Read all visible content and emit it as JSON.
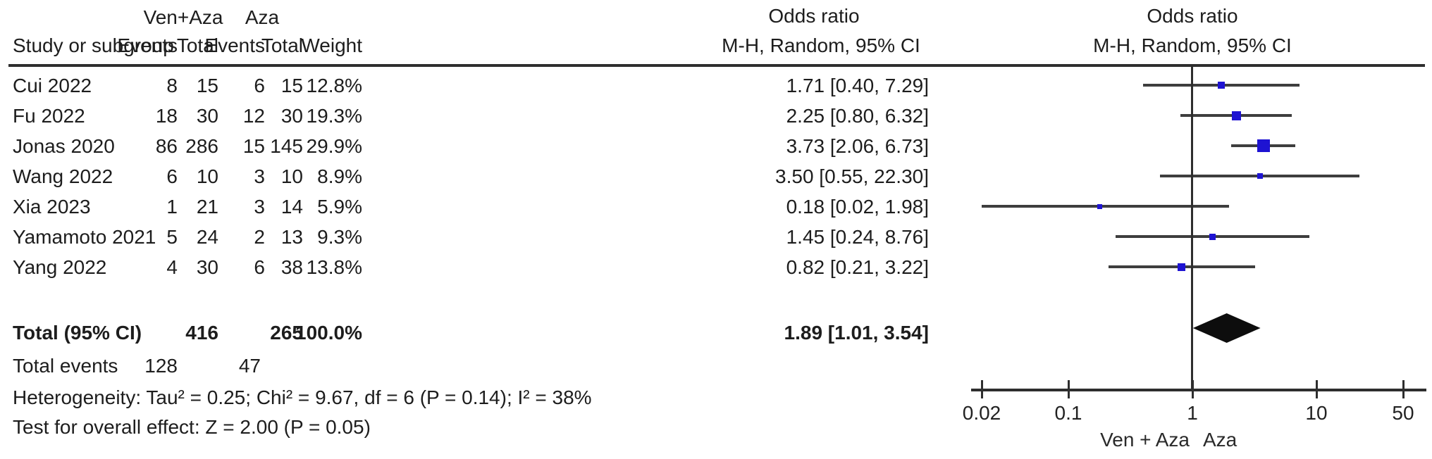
{
  "header": {
    "group1": "Ven+Aza",
    "group2": "Aza",
    "study_col": "Study or subgroup",
    "events_col": "Events",
    "total_col": "Total",
    "weight_col": "Weight",
    "or_col_line1": "Odds ratio",
    "or_col_line2": "M-H, Random, 95% CI"
  },
  "studies": [
    {
      "name": "Cui 2022",
      "events1": "8",
      "total1": "15",
      "events2": "6",
      "total2": "15",
      "weight": "12.8%",
      "or_text": "1.71 [0.40, 7.29]",
      "or": 1.71,
      "lo": 0.4,
      "hi": 7.29,
      "weight_pct": 12.8
    },
    {
      "name": "Fu 2022",
      "events1": "18",
      "total1": "30",
      "events2": "12",
      "total2": "30",
      "weight": "19.3%",
      "or_text": "2.25 [0.80, 6.32]",
      "or": 2.25,
      "lo": 0.8,
      "hi": 6.32,
      "weight_pct": 19.3
    },
    {
      "name": "Jonas 2020",
      "events1": "86",
      "total1": "286",
      "events2": "15",
      "total2": "145",
      "weight": "29.9%",
      "or_text": "3.73 [2.06, 6.73]",
      "or": 3.73,
      "lo": 2.06,
      "hi": 6.73,
      "weight_pct": 29.9
    },
    {
      "name": "Wang 2022",
      "events1": "6",
      "total1": "10",
      "events2": "3",
      "total2": "10",
      "weight": "8.9%",
      "or_text": "3.50 [0.55, 22.30]",
      "or": 3.5,
      "lo": 0.55,
      "hi": 22.3,
      "weight_pct": 8.9
    },
    {
      "name": "Xia 2023",
      "events1": "1",
      "total1": "21",
      "events2": "3",
      "total2": "14",
      "weight": "5.9%",
      "or_text": "0.18 [0.02, 1.98]",
      "or": 0.18,
      "lo": 0.02,
      "hi": 1.98,
      "weight_pct": 5.9
    },
    {
      "name": "Yamamoto 2021",
      "events1": "5",
      "total1": "24",
      "events2": "2",
      "total2": "13",
      "weight": "9.3%",
      "or_text": "1.45 [0.24, 8.76]",
      "or": 1.45,
      "lo": 0.24,
      "hi": 8.76,
      "weight_pct": 9.3
    },
    {
      "name": "Yang 2022",
      "events1": "4",
      "total1": "30",
      "events2": "6",
      "total2": "38",
      "weight": "13.8%",
      "or_text": "0.82 [0.21, 3.22]",
      "or": 0.82,
      "lo": 0.21,
      "hi": 3.22,
      "weight_pct": 13.8
    }
  ],
  "total_row": {
    "label": "Total (95% CI)",
    "total1": "416",
    "total2": "265",
    "weight": "100.0%",
    "or_text": "1.89 [1.01, 3.54]",
    "or": 1.89,
    "lo": 1.01,
    "hi": 3.54
  },
  "total_events": {
    "label": "Total events",
    "events1": "128",
    "events2": "47"
  },
  "heterogeneity": "Heterogeneity: Tau² = 0.25; Chi² = 9.67, df = 6 (P = 0.14); I² = 38%",
  "overall_effect": "Test for overall effect: Z = 2.00 (P = 0.05)",
  "plot": {
    "ticks": [
      {
        "label": "0.02",
        "value": 0.02
      },
      {
        "label": "0.1",
        "value": 0.1
      },
      {
        "label": "1",
        "value": 1
      },
      {
        "label": "10",
        "value": 10
      },
      {
        "label": "50",
        "value": 50
      }
    ],
    "xlabel_left": "Ven + Aza",
    "xlabel_right": "Aza",
    "marker_color": "#1e13d2",
    "ci_line_color": "#3e3e3e",
    "diamond_color": "#0d0d0d",
    "axis_color": "#2e2e2e"
  },
  "chart_data": {
    "type": "scatter",
    "subtype": "forest-plot-meta-analysis",
    "title": "Odds ratio, M-H, Random, 95% CI",
    "x_scale": "log10",
    "x_ticks": [
      0.02,
      0.1,
      1,
      10,
      50
    ],
    "xlim": [
      0.02,
      50
    ],
    "reference_line": 1,
    "axis_direction_labels": {
      "left_of_1": "Ven + Aza",
      "right_of_1": "Aza"
    },
    "groups": [
      "Ven+Aza",
      "Aza"
    ],
    "series": [
      {
        "name": "Cui 2022",
        "or": 1.71,
        "ci95": [
          0.4,
          7.29
        ],
        "weight_pct": 12.8,
        "events_exp": 8,
        "total_exp": 15,
        "events_ctrl": 6,
        "total_ctrl": 15
      },
      {
        "name": "Fu 2022",
        "or": 2.25,
        "ci95": [
          0.8,
          6.32
        ],
        "weight_pct": 19.3,
        "events_exp": 18,
        "total_exp": 30,
        "events_ctrl": 12,
        "total_ctrl": 30
      },
      {
        "name": "Jonas 2020",
        "or": 3.73,
        "ci95": [
          2.06,
          6.73
        ],
        "weight_pct": 29.9,
        "events_exp": 86,
        "total_exp": 286,
        "events_ctrl": 15,
        "total_ctrl": 145
      },
      {
        "name": "Wang 2022",
        "or": 3.5,
        "ci95": [
          0.55,
          22.3
        ],
        "weight_pct": 8.9,
        "events_exp": 6,
        "total_exp": 10,
        "events_ctrl": 3,
        "total_ctrl": 10
      },
      {
        "name": "Xia 2023",
        "or": 0.18,
        "ci95": [
          0.02,
          1.98
        ],
        "weight_pct": 5.9,
        "events_exp": 1,
        "total_exp": 21,
        "events_ctrl": 3,
        "total_ctrl": 14
      },
      {
        "name": "Yamamoto 2021",
        "or": 1.45,
        "ci95": [
          0.24,
          8.76
        ],
        "weight_pct": 9.3,
        "events_exp": 5,
        "total_exp": 24,
        "events_ctrl": 2,
        "total_ctrl": 13
      },
      {
        "name": "Yang 2022",
        "or": 0.82,
        "ci95": [
          0.21,
          3.22
        ],
        "weight_pct": 13.8,
        "events_exp": 4,
        "total_exp": 30,
        "events_ctrl": 6,
        "total_ctrl": 38
      }
    ],
    "total": {
      "name": "Total (95% CI)",
      "or": 1.89,
      "ci95": [
        1.01,
        3.54
      ],
      "weight_pct": 100.0,
      "total_exp": 416,
      "total_ctrl": 265,
      "events_exp": 128,
      "events_ctrl": 47
    },
    "heterogeneity": {
      "tau2": 0.25,
      "chi2": 9.67,
      "df": 6,
      "p": 0.14,
      "i2_pct": 38
    },
    "overall_effect": {
      "z": 2.0,
      "p": 0.05
    }
  }
}
